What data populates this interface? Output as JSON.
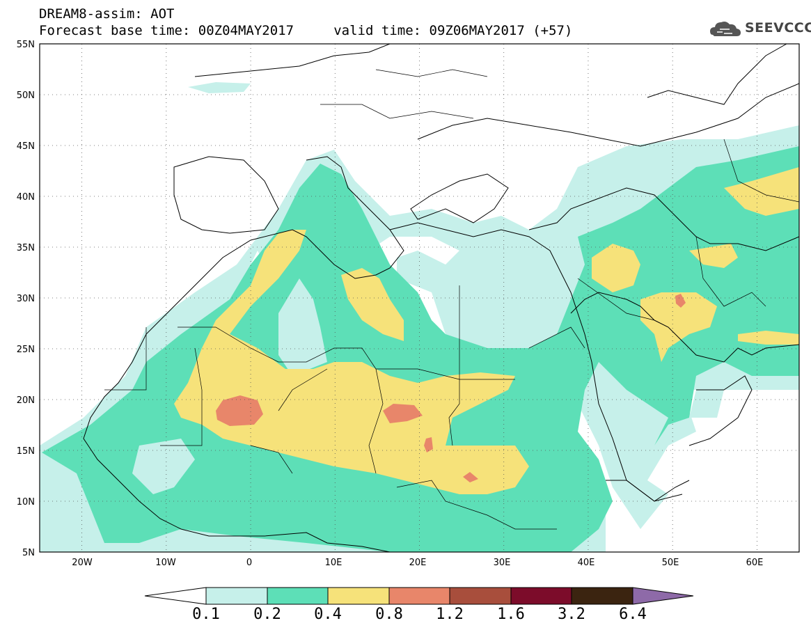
{
  "header": {
    "title_line1": "DREAM8-assim: AOT",
    "title_line2": "Forecast base time: 00Z04MAY2017     valid time: 09Z06MAY2017 (+57)"
  },
  "logo": {
    "text": "SEEVCCC",
    "icon": "cloud-icon"
  },
  "map": {
    "lon_range": [
      -25,
      65
    ],
    "lat_range": [
      5,
      55
    ],
    "x_ticks": [
      "20W",
      "10W",
      "0",
      "10E",
      "20E",
      "30E",
      "40E",
      "50E",
      "60E"
    ],
    "y_ticks": [
      "55N",
      "50N",
      "45N",
      "40N",
      "35N",
      "30N",
      "25N",
      "20N",
      "15N",
      "10N",
      "5N"
    ],
    "grid": "dotted"
  },
  "colorbar": {
    "labels": [
      "0.1",
      "0.2",
      "0.4",
      "0.8",
      "1.2",
      "1.6",
      "3.2",
      "6.4"
    ],
    "colors": [
      "#ffffff",
      "#c6f0ea",
      "#5ddfb7",
      "#f6e27a",
      "#e8866a",
      "#a84e3c",
      "#7c0c2a",
      "#3b2410",
      "#8e6aa8"
    ]
  }
}
